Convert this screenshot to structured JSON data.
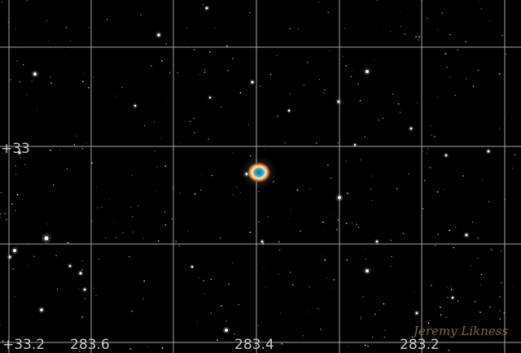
{
  "image": {
    "subject": "Ring Nebula",
    "background_color": "#000000",
    "grid_color": "#cfcfcf",
    "nebula_colors": {
      "outer": "#d86a18",
      "ring": "#e8d58a",
      "inner": "#2f8fb0"
    }
  },
  "grid_labels": {
    "dec_mid": "+33",
    "dec_bottom": "+33.2",
    "ra_left": "283.6",
    "ra_center": "283.4",
    "ra_right": "283.2"
  },
  "watermark": "Jeremy Likness"
}
